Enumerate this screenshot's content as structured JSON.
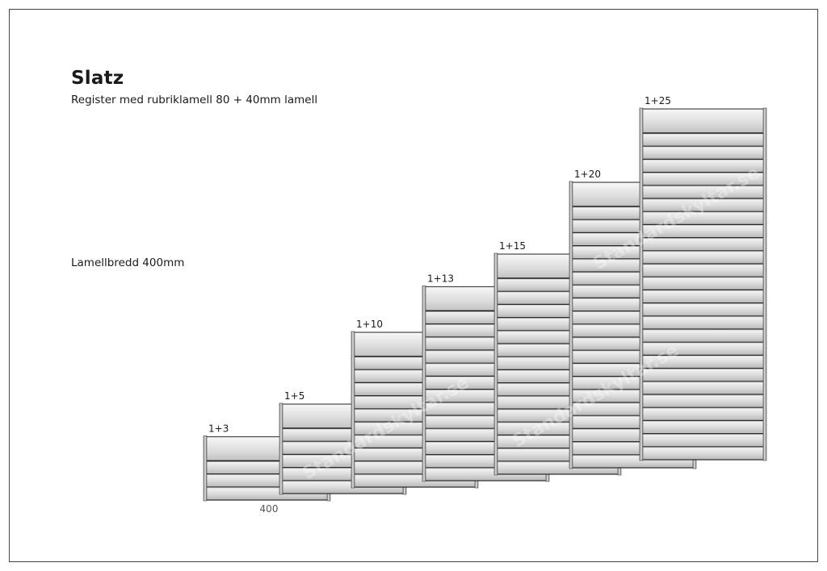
{
  "title": "Slatz",
  "subtitle": "Register med rubriklamell 80 + 40mm lamell",
  "width_label": "Lamellbredd 400mm",
  "dimension_label": "400",
  "watermark": "Standardskyltar.se",
  "registers": [
    {
      "label": "1+3",
      "slats": 3
    },
    {
      "label": "1+5",
      "slats": 5
    },
    {
      "label": "1+10",
      "slats": 10
    },
    {
      "label": "1+13",
      "slats": 13
    },
    {
      "label": "1+15",
      "slats": 15
    },
    {
      "label": "1+20",
      "slats": 20
    },
    {
      "label": "1+25",
      "slats": 25
    }
  ]
}
